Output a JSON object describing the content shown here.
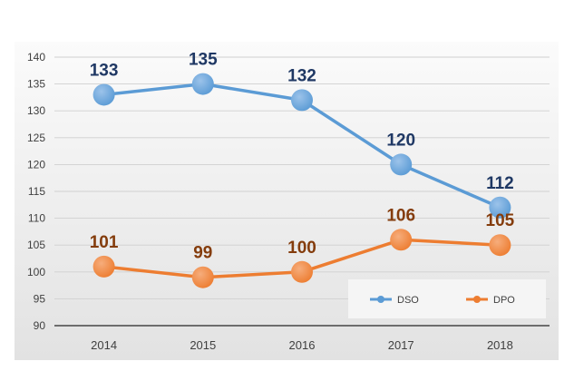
{
  "chart_data": {
    "type": "line",
    "categories": [
      "2014",
      "2015",
      "2016",
      "2017",
      "2018"
    ],
    "ylim": [
      90,
      140
    ],
    "yticks": [
      90,
      95,
      100,
      105,
      110,
      115,
      120,
      125,
      130,
      135,
      140
    ],
    "grid": true,
    "legend_position": "bottom-right",
    "series": [
      {
        "name": "DSO",
        "values": [
          133,
          135,
          132,
          120,
          112
        ],
        "labels": [
          "133",
          "135",
          "132",
          "120",
          "112"
        ],
        "color": "#5B9BD5",
        "label_color": "#1F3864"
      },
      {
        "name": "DPO",
        "values": [
          101,
          99,
          100,
          106,
          105
        ],
        "labels": [
          "101",
          "99",
          "100",
          "106",
          "105"
        ],
        "color": "#ED7D31",
        "label_color": "#843C0C"
      }
    ]
  }
}
